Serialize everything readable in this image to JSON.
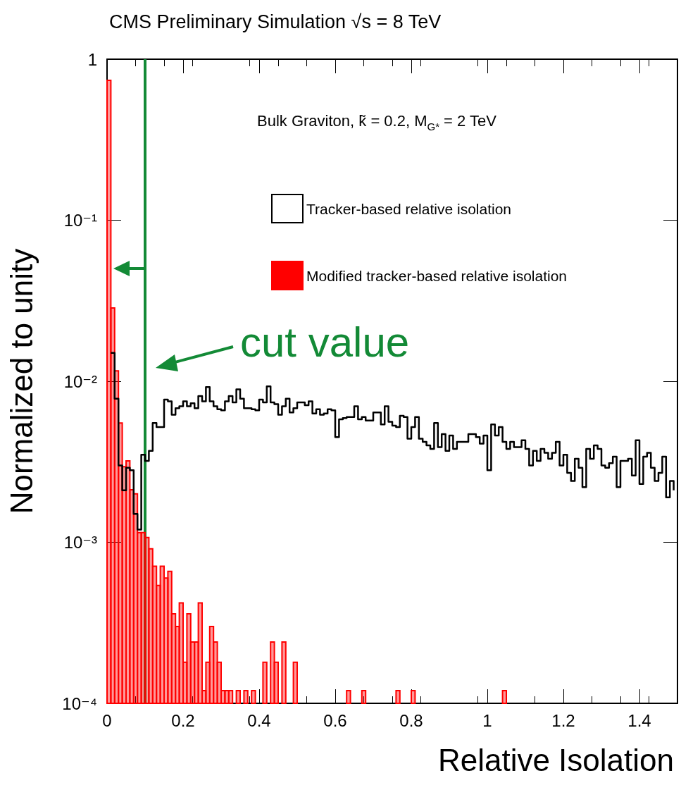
{
  "chart_data": {
    "type": "histogram",
    "title": "CMS Preliminary Simulation √s = 8 TeV",
    "xlabel": "Relative Isolation",
    "ylabel": "Normalized to unity",
    "annotations": [
      "Bulk Graviton, k̃ = 0.2, M$_{G*}$ = 2 TeV"
    ],
    "bins": [
      0,
      0.01,
      0.02,
      0.03,
      0.04,
      0.05,
      0.06,
      0.07,
      0.08,
      0.09,
      0.1,
      0.11,
      0.12,
      0.13,
      0.14,
      0.15,
      0.16,
      0.17,
      0.18,
      0.19,
      0.2,
      0.21,
      0.22,
      0.23,
      0.24,
      0.25,
      0.26,
      0.27,
      0.28,
      0.29,
      0.3,
      0.31,
      0.32,
      0.33,
      0.34,
      0.35,
      0.36,
      0.37,
      0.38,
      0.39,
      0.4,
      0.41,
      0.42,
      0.43,
      0.44,
      0.45,
      0.46,
      0.47,
      0.48,
      0.49,
      0.5,
      0.51,
      0.52,
      0.53,
      0.54,
      0.55,
      0.56,
      0.57,
      0.58,
      0.59,
      0.6,
      0.61,
      0.62,
      0.63,
      0.64,
      0.65,
      0.66,
      0.67,
      0.68,
      0.69,
      0.7,
      0.71,
      0.72,
      0.73,
      0.74,
      0.75,
      0.76,
      0.77,
      0.78,
      0.79,
      0.8,
      0.81,
      0.82,
      0.83,
      0.84,
      0.85,
      0.86,
      0.87,
      0.88,
      0.89,
      0.9,
      0.91,
      0.92,
      0.93,
      0.94,
      0.95,
      0.96,
      0.97,
      0.98,
      0.99,
      1,
      1.01,
      1.02,
      1.03,
      1.04,
      1.05,
      1.06,
      1.07,
      1.08,
      1.09,
      1.1,
      1.11,
      1.12,
      1.13,
      1.14,
      1.15,
      1.16,
      1.17,
      1.18,
      1.19,
      1.2,
      1.21,
      1.22,
      1.23,
      1.24,
      1.25,
      1.26,
      1.27,
      1.28,
      1.29,
      1.3,
      1.31,
      1.32,
      1.33,
      1.34,
      1.35,
      1.36,
      1.37,
      1.38,
      1.39,
      1.4,
      1.41,
      1.42,
      1.43,
      1.44,
      1.45,
      1.46,
      1.47,
      1.48,
      1.49,
      1.5
    ],
    "series": [
      {
        "name": "Tracker-based relative isolation",
        "type": "step",
        "color": "#000000",
        "x": [
          0.01,
          0.02,
          0.03,
          0.04,
          0.05,
          0.06,
          0.07,
          0.08,
          0.09,
          0.1,
          0.11,
          0.12,
          0.13,
          0.14,
          0.15,
          0.16,
          0.17,
          0.18,
          0.19,
          0.2,
          0.21,
          0.22,
          0.23,
          0.24,
          0.25,
          0.26,
          0.27,
          0.28,
          0.29,
          0.3,
          0.31,
          0.32,
          0.33,
          0.34,
          0.35,
          0.36,
          0.37,
          0.38,
          0.39,
          0.4,
          0.41,
          0.42,
          0.43,
          0.44,
          0.45,
          0.46,
          0.47,
          0.48,
          0.49,
          0.5,
          0.51,
          0.52,
          0.53,
          0.54,
          0.55,
          0.56,
          0.57,
          0.58,
          0.59,
          0.6,
          0.61,
          0.62,
          0.63,
          0.64,
          0.65,
          0.66,
          0.67,
          0.68,
          0.69,
          0.7,
          0.71,
          0.72,
          0.73,
          0.74,
          0.75,
          0.76,
          0.77,
          0.78,
          0.79,
          0.8,
          0.81,
          0.82,
          0.83,
          0.84,
          0.85,
          0.86,
          0.87,
          0.88,
          0.89,
          0.9,
          0.91,
          0.92,
          0.93,
          0.94,
          0.95,
          0.96,
          0.97,
          0.98,
          0.99,
          1,
          1.01,
          1.02,
          1.03,
          1.04,
          1.05,
          1.06,
          1.07,
          1.08,
          1.09,
          1.1,
          1.11,
          1.12,
          1.13,
          1.14,
          1.15,
          1.16,
          1.17,
          1.18,
          1.19,
          1.2,
          1.21,
          1.22,
          1.23,
          1.24,
          1.25,
          1.26,
          1.27,
          1.28,
          1.29,
          1.3,
          1.31,
          1.32,
          1.33,
          1.34,
          1.35,
          1.36,
          1.37,
          1.38,
          1.39,
          1.4,
          1.41,
          1.42,
          1.43,
          1.44,
          1.45,
          1.46,
          1.47,
          1.48,
          1.49
        ],
        "values": [
          0.015,
          0.0078,
          0.003,
          0.0021,
          0.0029,
          0.0028,
          0.0015,
          0.0012,
          0.0035,
          0.0032,
          0.0037,
          0.0055,
          0.0052,
          0.0052,
          0.0077,
          0.0075,
          0.0062,
          0.0068,
          0.007,
          0.0075,
          0.007,
          0.0073,
          0.0068,
          0.0081,
          0.0075,
          0.0092,
          0.0075,
          0.007,
          0.0067,
          0.0066,
          0.0075,
          0.0081,
          0.0074,
          0.0089,
          0.0078,
          0.0068,
          0.0068,
          0.0067,
          0.0066,
          0.0077,
          0.0074,
          0.0093,
          0.0074,
          0.0072,
          0.0062,
          0.007,
          0.0078,
          0.0064,
          0.0068,
          0.0074,
          0.0074,
          0.0071,
          0.0075,
          0.0063,
          0.0067,
          0.0062,
          0.0063,
          0.0067,
          0.0066,
          0.0045,
          0.0058,
          0.0059,
          0.006,
          0.006,
          0.007,
          0.0058,
          0.006,
          0.0057,
          0.0057,
          0.0064,
          0.0064,
          0.0054,
          0.007,
          0.0056,
          0.0053,
          0.0052,
          0.0061,
          0.006,
          0.0044,
          0.0052,
          0.006,
          0.0044,
          0.0042,
          0.004,
          0.0038,
          0.0055,
          0.0039,
          0.0047,
          0.0037,
          0.0046,
          0.0038,
          0.0042,
          0.0042,
          0.0042,
          0.0047,
          0.0047,
          0.0045,
          0.0041,
          0.0046,
          0.0028,
          0.0054,
          0.0046,
          0.0052,
          0.0042,
          0.0038,
          0.0042,
          0.0039,
          0.0039,
          0.0043,
          0.0038,
          0.003,
          0.0037,
          0.0032,
          0.0038,
          0.0036,
          0.0033,
          0.0036,
          0.0042,
          0.003,
          0.0035,
          0.0027,
          0.0024,
          0.0033,
          0.0029,
          0.0022,
          0.0038,
          0.0033,
          0.004,
          0.0038,
          0.003,
          0.0029,
          0.0031,
          0.0034,
          0.0022,
          0.0032,
          0.0032,
          0.0033,
          0.0026,
          0.0043,
          0.0023,
          0.0034,
          0.0036,
          0.0029,
          0.0024,
          0.0027,
          0.0034,
          0.0019,
          0.0024,
          0.0021
        ]
      },
      {
        "name": "Modified tracker-based relative isolation",
        "color": "#ff0000",
        "values": [
          0.74,
          0.0285,
          0.0116,
          0.0055,
          0.00295,
          0.0032,
          0.00212,
          0.002,
          0.00115,
          0.00115,
          0.00107,
          0.00091,
          0.00071,
          0.00054,
          0.00071,
          0.0006,
          0.00066,
          0.00036,
          0.0003,
          0.00042,
          0.00018,
          0.00036,
          0.00024,
          0.00024,
          0.00042,
          0.00012,
          0.00018,
          0.0003,
          0.00024,
          0.00018,
          0.00012,
          0.00012,
          0.00012,
          null,
          0.00012,
          null,
          0.00012,
          null,
          0.00012,
          null,
          null,
          0.00018,
          null,
          0.00024,
          0.00018,
          null,
          0.00024,
          null,
          null,
          0.00018,
          null,
          null,
          null,
          null,
          null,
          null,
          null,
          null,
          null,
          null,
          null,
          null,
          null,
          0.00012,
          null,
          null,
          null,
          0.00012,
          null,
          null,
          null,
          null,
          null,
          null,
          null,
          null,
          0.00012,
          null,
          null,
          null,
          0.00012,
          null,
          null,
          null,
          null,
          null,
          null,
          null,
          null,
          null,
          null,
          null,
          null,
          null,
          null,
          null,
          null,
          null,
          null,
          null,
          null,
          null,
          null,
          null,
          0.00012,
          null,
          null,
          null,
          null,
          null,
          null,
          null,
          null,
          null,
          null,
          null,
          null,
          null,
          null,
          null,
          null,
          null,
          null,
          null,
          null,
          null,
          null,
          null,
          null,
          null,
          null,
          null,
          null,
          null,
          null,
          null,
          null,
          null,
          null,
          null,
          null,
          null,
          null,
          null,
          null,
          null,
          null,
          null,
          null,
          null
        ]
      }
    ],
    "xlim": [
      0,
      1.5
    ],
    "xticks": [
      0,
      0.2,
      0.4,
      0.6,
      0.8,
      1,
      1.2,
      1.4
    ],
    "ylim": [
      0.0001,
      1
    ],
    "yticks": [
      {
        "value": 0.0001,
        "label": "10⁻⁴"
      },
      {
        "value": 0.001,
        "label": "10⁻³"
      },
      {
        "value": 0.01,
        "label": "10⁻²"
      },
      {
        "value": 0.1,
        "label": "10⁻¹"
      },
      1
    ],
    "log": "y",
    "legend": "top right",
    "ref_lines": [
      {
        "axis": "x",
        "value": 0.1,
        "label": "cut value",
        "color": "#138a36"
      }
    ]
  }
}
